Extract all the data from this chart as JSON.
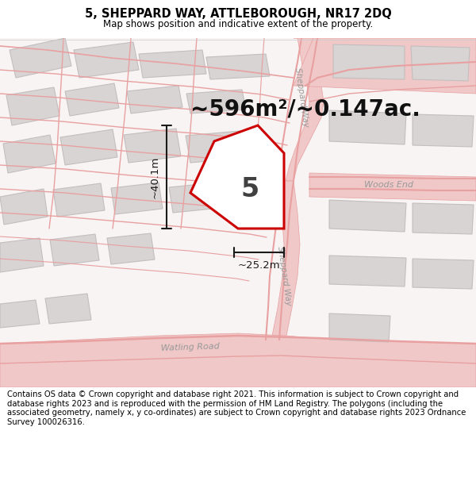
{
  "title": "5, SHEPPARD WAY, ATTLEBOROUGH, NR17 2DQ",
  "subtitle": "Map shows position and indicative extent of the property.",
  "footer": "Contains OS data © Crown copyright and database right 2021. This information is subject to Crown copyright and database rights 2023 and is reproduced with the permission of HM Land Registry. The polygons (including the associated geometry, namely x, y co-ordinates) are subject to Crown copyright and database rights 2023 Ordnance Survey 100026316.",
  "area_text": "~596m²/~0.147ac.",
  "plot_number": "5",
  "dim_width": "~25.2m",
  "dim_height": "~40.1m",
  "map_bg": "#ffffff",
  "plot_outline_color": "#cc0000",
  "road_pink": "#f0c8c8",
  "road_line": "#e8a0a0",
  "building_fill": "#d8d4d4",
  "building_edge": "#c4bebe",
  "road_label_color": "#999999",
  "dim_color": "#1a1a1a",
  "title_fontsize": 10.5,
  "subtitle_fontsize": 8.5,
  "footer_fontsize": 7.2,
  "area_fontsize": 20,
  "plot_num_fontsize": 24,
  "dim_label_fontsize": 9.5
}
